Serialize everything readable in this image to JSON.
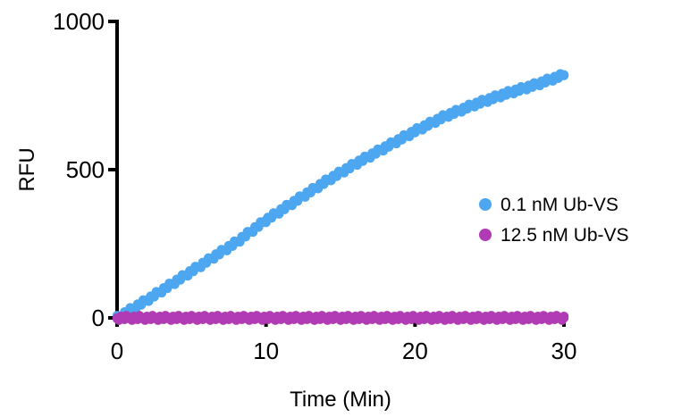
{
  "chart_data": {
    "type": "scatter",
    "xlabel": "Time (Min)",
    "ylabel": "RFU",
    "xlim": [
      0,
      30
    ],
    "ylim": [
      0,
      1000
    ],
    "xticks": [
      "0",
      "10",
      "20",
      "30"
    ],
    "yticks": [
      "0",
      "500",
      "1000"
    ],
    "grid": false,
    "legend_position": "right",
    "series": [
      {
        "name": "0.1 nM Ub-VS",
        "color": "#4da6f0",
        "x": [
          0,
          2,
          4,
          6,
          8,
          10,
          12,
          14,
          16,
          18,
          20,
          22,
          24,
          26,
          28,
          30
        ],
        "y": [
          0,
          60,
          125,
          190,
          255,
          330,
          395,
          460,
          520,
          575,
          630,
          680,
          720,
          755,
          785,
          820
        ]
      },
      {
        "name": "12.5 nM Ub-VS",
        "color": "#b03bb5",
        "x": [
          0,
          5,
          10,
          15,
          20,
          25,
          30
        ],
        "y": [
          0,
          0,
          0,
          0,
          0,
          0,
          0
        ]
      }
    ]
  }
}
